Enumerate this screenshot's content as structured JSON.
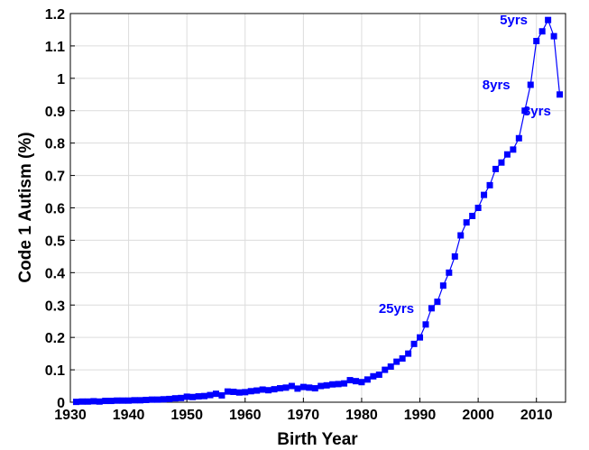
{
  "chart_data": {
    "type": "line",
    "title": "",
    "xlabel": "Birth Year",
    "ylabel": "Code 1 Autism (%)",
    "xlim": [
      1930,
      2015
    ],
    "ylim": [
      0,
      1.2
    ],
    "x_ticks": [
      1930,
      1940,
      1950,
      1960,
      1970,
      1980,
      1990,
      2000,
      2010
    ],
    "y_ticks": [
      0,
      0.1,
      0.2,
      0.3,
      0.4,
      0.5,
      0.6,
      0.7,
      0.8,
      0.9,
      1,
      1.1,
      1.2
    ],
    "x_tick_labels": [
      "1930",
      "1940",
      "1950",
      "1960",
      "1970",
      "1980",
      "1990",
      "2000",
      "2010"
    ],
    "y_tick_labels": [
      "0",
      "0.1",
      "0.2",
      "0.3",
      "0.4",
      "0.5",
      "0.6",
      "0.7",
      "0.8",
      "0.9",
      "1",
      "1.1",
      "1.2"
    ],
    "grid": true,
    "colors": {
      "series": "#0000ff",
      "annotation": "#0000ff"
    },
    "series": [
      {
        "marker": "square",
        "x": [
          1931,
          1932,
          1933,
          1934,
          1935,
          1936,
          1937,
          1938,
          1939,
          1940,
          1941,
          1942,
          1943,
          1944,
          1945,
          1946,
          1947,
          1948,
          1949,
          1950,
          1951,
          1952,
          1953,
          1954,
          1955,
          1956,
          1957,
          1958,
          1959,
          1960,
          1961,
          1962,
          1963,
          1964,
          1965,
          1966,
          1967,
          1968,
          1969,
          1970,
          1971,
          1972,
          1973,
          1974,
          1975,
          1976,
          1977,
          1978,
          1979,
          1980,
          1981,
          1982,
          1983,
          1984,
          1985,
          1986,
          1987,
          1988,
          1989,
          1990,
          1991,
          1992,
          1993,
          1994,
          1995,
          1996,
          1997,
          1998,
          1999,
          2000,
          2001,
          2002,
          2003,
          2004,
          2005,
          2006,
          2007,
          2008,
          2009,
          2010,
          2011,
          2012,
          2013,
          2014
        ],
        "y": [
          0.001,
          0.002,
          0.002,
          0.003,
          0.002,
          0.004,
          0.004,
          0.005,
          0.005,
          0.005,
          0.006,
          0.006,
          0.007,
          0.008,
          0.008,
          0.009,
          0.01,
          0.012,
          0.013,
          0.017,
          0.016,
          0.018,
          0.019,
          0.022,
          0.026,
          0.021,
          0.033,
          0.032,
          0.03,
          0.031,
          0.034,
          0.036,
          0.039,
          0.037,
          0.04,
          0.043,
          0.045,
          0.05,
          0.042,
          0.047,
          0.045,
          0.043,
          0.05,
          0.052,
          0.055,
          0.056,
          0.058,
          0.068,
          0.065,
          0.062,
          0.07,
          0.08,
          0.085,
          0.1,
          0.11,
          0.125,
          0.135,
          0.15,
          0.18,
          0.2,
          0.24,
          0.29,
          0.31,
          0.36,
          0.4,
          0.45,
          0.515,
          0.555,
          0.575,
          0.6,
          0.64,
          0.67,
          0.72,
          0.74,
          0.765,
          0.78,
          0.815,
          0.9,
          0.98,
          1.115,
          1.145,
          1.18,
          1.13,
          0.95
        ]
      }
    ],
    "annotations": [
      {
        "text": "25yrs",
        "x": 1989,
        "y": 0.29
      },
      {
        "text": "8yrs",
        "x": 2005.5,
        "y": 0.98
      },
      {
        "text": "5yrs",
        "x": 2008.5,
        "y": 1.18
      },
      {
        "text": "3yrs",
        "x": 2012.5,
        "y": 0.9
      }
    ]
  }
}
